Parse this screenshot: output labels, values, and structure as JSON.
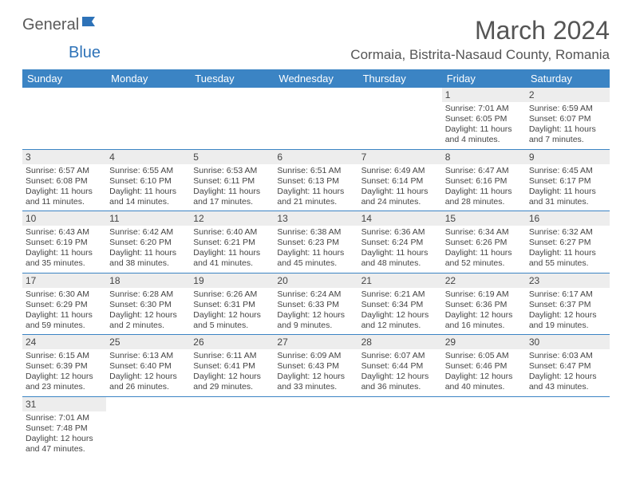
{
  "logo": {
    "text1": "General",
    "text2": "Blue"
  },
  "title": "March 2024",
  "location": "Cormaia, Bistrita-Nasaud County, Romania",
  "colors": {
    "header_bg": "#3b84c4",
    "header_text": "#ffffff",
    "daynum_bg": "#ededed",
    "border": "#3b84c4",
    "text": "#444444"
  },
  "weekdays": [
    "Sunday",
    "Monday",
    "Tuesday",
    "Wednesday",
    "Thursday",
    "Friday",
    "Saturday"
  ],
  "weeks": [
    [
      null,
      null,
      null,
      null,
      null,
      {
        "n": "1",
        "sr": "7:01 AM",
        "ss": "6:05 PM",
        "dl": "11 hours and 4 minutes."
      },
      {
        "n": "2",
        "sr": "6:59 AM",
        "ss": "6:07 PM",
        "dl": "11 hours and 7 minutes."
      }
    ],
    [
      {
        "n": "3",
        "sr": "6:57 AM",
        "ss": "6:08 PM",
        "dl": "11 hours and 11 minutes."
      },
      {
        "n": "4",
        "sr": "6:55 AM",
        "ss": "6:10 PM",
        "dl": "11 hours and 14 minutes."
      },
      {
        "n": "5",
        "sr": "6:53 AM",
        "ss": "6:11 PM",
        "dl": "11 hours and 17 minutes."
      },
      {
        "n": "6",
        "sr": "6:51 AM",
        "ss": "6:13 PM",
        "dl": "11 hours and 21 minutes."
      },
      {
        "n": "7",
        "sr": "6:49 AM",
        "ss": "6:14 PM",
        "dl": "11 hours and 24 minutes."
      },
      {
        "n": "8",
        "sr": "6:47 AM",
        "ss": "6:16 PM",
        "dl": "11 hours and 28 minutes."
      },
      {
        "n": "9",
        "sr": "6:45 AM",
        "ss": "6:17 PM",
        "dl": "11 hours and 31 minutes."
      }
    ],
    [
      {
        "n": "10",
        "sr": "6:43 AM",
        "ss": "6:19 PM",
        "dl": "11 hours and 35 minutes."
      },
      {
        "n": "11",
        "sr": "6:42 AM",
        "ss": "6:20 PM",
        "dl": "11 hours and 38 minutes."
      },
      {
        "n": "12",
        "sr": "6:40 AM",
        "ss": "6:21 PM",
        "dl": "11 hours and 41 minutes."
      },
      {
        "n": "13",
        "sr": "6:38 AM",
        "ss": "6:23 PM",
        "dl": "11 hours and 45 minutes."
      },
      {
        "n": "14",
        "sr": "6:36 AM",
        "ss": "6:24 PM",
        "dl": "11 hours and 48 minutes."
      },
      {
        "n": "15",
        "sr": "6:34 AM",
        "ss": "6:26 PM",
        "dl": "11 hours and 52 minutes."
      },
      {
        "n": "16",
        "sr": "6:32 AM",
        "ss": "6:27 PM",
        "dl": "11 hours and 55 minutes."
      }
    ],
    [
      {
        "n": "17",
        "sr": "6:30 AM",
        "ss": "6:29 PM",
        "dl": "11 hours and 59 minutes."
      },
      {
        "n": "18",
        "sr": "6:28 AM",
        "ss": "6:30 PM",
        "dl": "12 hours and 2 minutes."
      },
      {
        "n": "19",
        "sr": "6:26 AM",
        "ss": "6:31 PM",
        "dl": "12 hours and 5 minutes."
      },
      {
        "n": "20",
        "sr": "6:24 AM",
        "ss": "6:33 PM",
        "dl": "12 hours and 9 minutes."
      },
      {
        "n": "21",
        "sr": "6:21 AM",
        "ss": "6:34 PM",
        "dl": "12 hours and 12 minutes."
      },
      {
        "n": "22",
        "sr": "6:19 AM",
        "ss": "6:36 PM",
        "dl": "12 hours and 16 minutes."
      },
      {
        "n": "23",
        "sr": "6:17 AM",
        "ss": "6:37 PM",
        "dl": "12 hours and 19 minutes."
      }
    ],
    [
      {
        "n": "24",
        "sr": "6:15 AM",
        "ss": "6:39 PM",
        "dl": "12 hours and 23 minutes."
      },
      {
        "n": "25",
        "sr": "6:13 AM",
        "ss": "6:40 PM",
        "dl": "12 hours and 26 minutes."
      },
      {
        "n": "26",
        "sr": "6:11 AM",
        "ss": "6:41 PM",
        "dl": "12 hours and 29 minutes."
      },
      {
        "n": "27",
        "sr": "6:09 AM",
        "ss": "6:43 PM",
        "dl": "12 hours and 33 minutes."
      },
      {
        "n": "28",
        "sr": "6:07 AM",
        "ss": "6:44 PM",
        "dl": "12 hours and 36 minutes."
      },
      {
        "n": "29",
        "sr": "6:05 AM",
        "ss": "6:46 PM",
        "dl": "12 hours and 40 minutes."
      },
      {
        "n": "30",
        "sr": "6:03 AM",
        "ss": "6:47 PM",
        "dl": "12 hours and 43 minutes."
      }
    ],
    [
      {
        "n": "31",
        "sr": "7:01 AM",
        "ss": "7:48 PM",
        "dl": "12 hours and 47 minutes."
      },
      null,
      null,
      null,
      null,
      null,
      null
    ]
  ],
  "labels": {
    "sunrise": "Sunrise: ",
    "sunset": "Sunset: ",
    "daylight": "Daylight: "
  }
}
